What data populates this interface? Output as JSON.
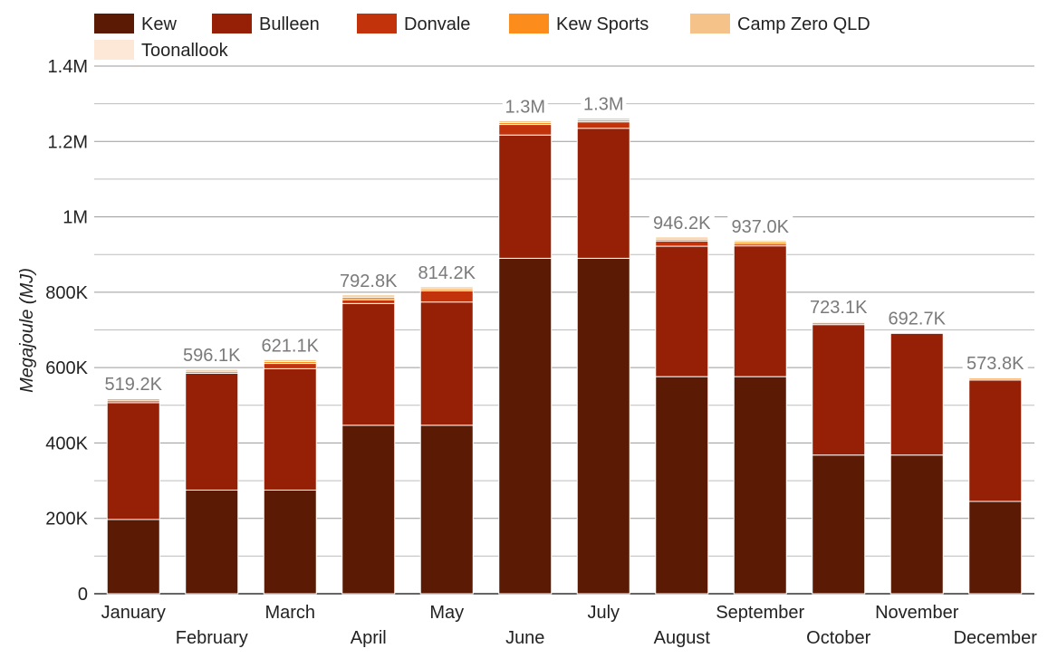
{
  "chart_data": {
    "type": "bar",
    "stacked": true,
    "title": "",
    "xlabel": "",
    "ylabel": "Megajoule (MJ)",
    "ylim": [
      0,
      1400000
    ],
    "yticks": [
      0,
      200000,
      400000,
      600000,
      800000,
      1000000,
      1200000,
      1400000
    ],
    "ytick_labels": [
      "0",
      "200K",
      "400K",
      "600K",
      "800K",
      "1M",
      "1.2M",
      "1.4M"
    ],
    "categories": [
      "January",
      "February",
      "March",
      "April",
      "May",
      "June",
      "July",
      "August",
      "September",
      "October",
      "November",
      "December"
    ],
    "series": [
      {
        "name": "Kew",
        "color": "#5a1a04",
        "values": [
          197000,
          275000,
          275000,
          447000,
          447000,
          890000,
          890000,
          576000,
          576000,
          368000,
          368000,
          245000
        ]
      },
      {
        "name": "Bulleen",
        "color": "#962006",
        "values": [
          310000,
          310000,
          322000,
          323000,
          327000,
          327000,
          345000,
          346000,
          347000,
          346000,
          323000,
          322000
        ]
      },
      {
        "name": "Donvale",
        "color": "#c2330c",
        "values": [
          5000,
          4000,
          14000,
          10000,
          30000,
          28000,
          17000,
          14000,
          5000,
          4000,
          0,
          0
        ]
      },
      {
        "name": "Kew Sports",
        "color": "#fc8c1c",
        "values": [
          5000,
          4000,
          5000,
          7000,
          5000,
          5000,
          5000,
          5000,
          5000,
          3000,
          0,
          5000
        ]
      },
      {
        "name": "Camp Zero QLD",
        "color": "#f5c389",
        "values": [
          2200,
          3100,
          5100,
          5800,
          5200,
          5000,
          5000,
          5200,
          4000,
          2100,
          1700,
          1800
        ]
      },
      {
        "name": "Toonallook",
        "color": "#fde8d8",
        "values": [
          0,
          0,
          0,
          0,
          0,
          0,
          0,
          0,
          0,
          0,
          0,
          0
        ]
      }
    ],
    "totals": [
      519200,
      596100,
      621100,
      792800,
      814200,
      1255000,
      1262000,
      946200,
      937000,
      723100,
      692700,
      573800
    ],
    "total_labels": [
      "519.2K",
      "596.1K",
      "621.1K",
      "792.8K",
      "814.2K",
      "1.3M",
      "1.3M",
      "946.2K",
      "937.0K",
      "723.1K",
      "692.7K",
      "573.8K"
    ],
    "legend_position": "top-left",
    "grid": true
  }
}
